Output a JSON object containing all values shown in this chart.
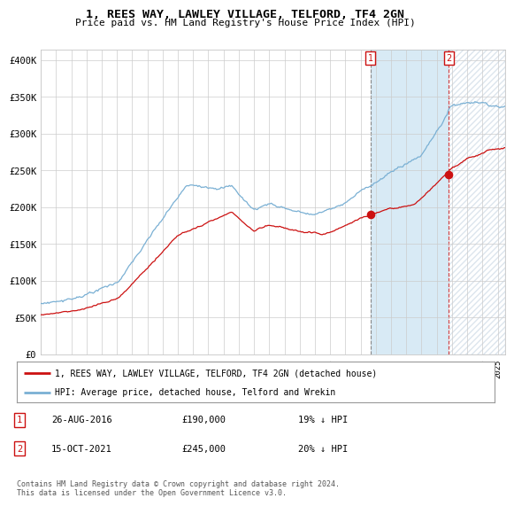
{
  "title": "1, REES WAY, LAWLEY VILLAGE, TELFORD, TF4 2GN",
  "subtitle": "Price paid vs. HM Land Registry's House Price Index (HPI)",
  "ylabel_ticks": [
    "£0",
    "£50K",
    "£100K",
    "£150K",
    "£200K",
    "£250K",
    "£300K",
    "£350K",
    "£400K"
  ],
  "ytick_values": [
    0,
    50000,
    100000,
    150000,
    200000,
    250000,
    300000,
    350000,
    400000
  ],
  "ylim": [
    0,
    415000
  ],
  "xlim_start": 1995.0,
  "xlim_end": 2025.5,
  "hpi_color": "#7ab0d4",
  "price_color": "#cc1111",
  "shade_color": "#d8eaf5",
  "marker1_date": 2016.65,
  "marker2_date": 2021.79,
  "marker1_label": "26-AUG-2016",
  "marker1_amount": "£190,000",
  "marker1_hpi": "19% ↓ HPI",
  "marker2_label": "15-OCT-2021",
  "marker2_amount": "£245,000",
  "marker2_hpi": "20% ↓ HPI",
  "legend_line1": "1, REES WAY, LAWLEY VILLAGE, TELFORD, TF4 2GN (detached house)",
  "legend_line2": "HPI: Average price, detached house, Telford and Wrekin",
  "footnote": "Contains HM Land Registry data © Crown copyright and database right 2024.\nThis data is licensed under the Open Government Licence v3.0.",
  "background_color": "#ffffff",
  "grid_color": "#cccccc"
}
